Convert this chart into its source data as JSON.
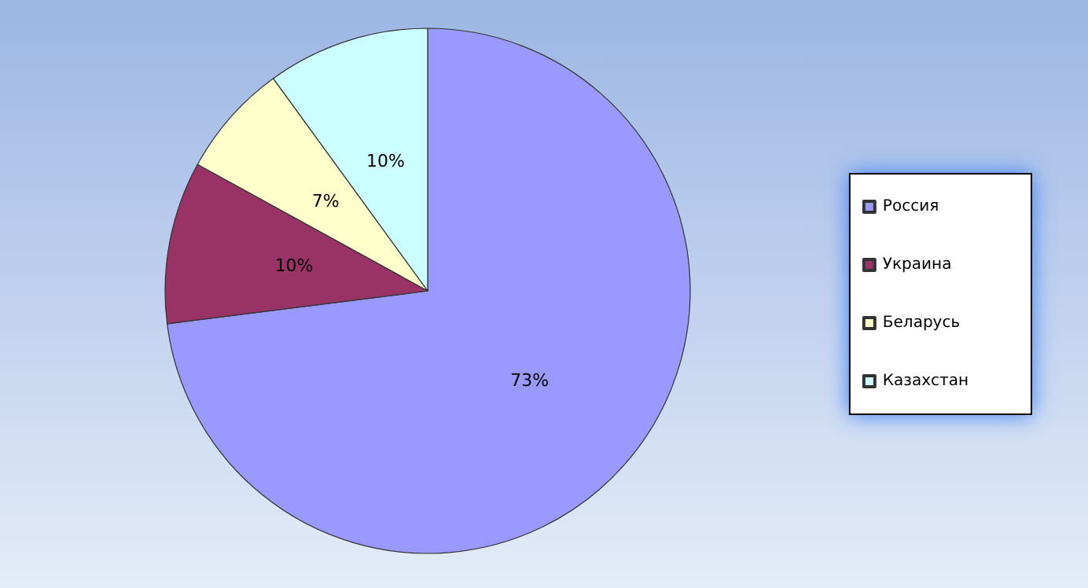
{
  "chart_data": {
    "type": "pie",
    "categories": [
      "Россия",
      "Украина",
      "Беларусь",
      "Казахстан"
    ],
    "values": [
      73,
      10,
      7,
      10
    ],
    "colors": [
      "#9999ff",
      "#993366",
      "#ffffcc",
      "#ccffff"
    ],
    "value_labels": [
      "73%",
      "10%",
      "7%",
      "10%"
    ],
    "legend": "right"
  }
}
